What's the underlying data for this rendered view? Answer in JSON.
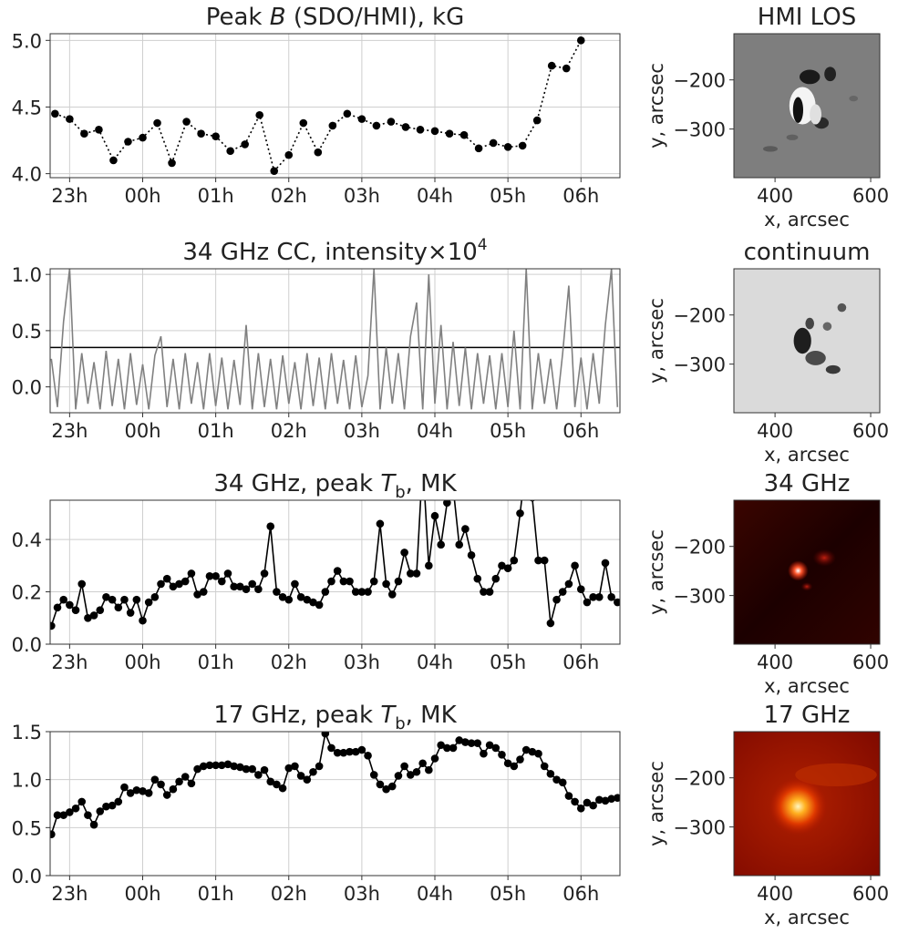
{
  "chart_data": [
    {
      "type": "line",
      "title": [
        {
          "text": "Peak "
        },
        {
          "text": "B",
          "style": "italic"
        },
        {
          "text": " (SDO/HMI), kG"
        }
      ],
      "x": [
        -72,
        -60,
        -48,
        -36,
        -24,
        -12,
        0,
        12,
        24,
        36,
        48,
        60,
        72,
        84,
        96,
        108,
        120,
        132,
        144,
        156,
        168,
        180,
        192,
        204,
        216,
        228,
        240,
        252,
        264,
        276,
        288,
        300,
        312,
        324,
        336,
        348,
        360
      ],
      "values": [
        4.45,
        4.41,
        4.3,
        4.33,
        4.1,
        4.24,
        4.27,
        4.38,
        4.08,
        4.39,
        4.3,
        4.28,
        4.17,
        4.22,
        4.44,
        4.02,
        4.14,
        4.38,
        4.16,
        4.36,
        4.45,
        4.41,
        4.36,
        4.39,
        4.35,
        4.33,
        4.32,
        4.3,
        4.29,
        4.19,
        4.23,
        4.2,
        4.21,
        4.4,
        4.81,
        4.79,
        5.0
      ],
      "color": "#000000",
      "linestyle": "dotted",
      "marker": true,
      "xlim": [
        -76,
        392
      ],
      "xticks": [
        {
          "value": -60,
          "label": "23h"
        },
        {
          "value": 0,
          "label": "00h"
        },
        {
          "value": 60,
          "label": "01h"
        },
        {
          "value": 120,
          "label": "02h"
        },
        {
          "value": 180,
          "label": "03h"
        },
        {
          "value": 240,
          "label": "04h"
        },
        {
          "value": 300,
          "label": "05h"
        },
        {
          "value": 360,
          "label": "06h"
        }
      ],
      "ylim": [
        3.97,
        5.05
      ],
      "yticks": [
        {
          "value": 4,
          "label": "4.0"
        },
        4.5,
        {
          "value": 5,
          "label": "5.0"
        }
      ],
      "grid": true
    },
    {
      "type": "image",
      "title": "HMI LOS",
      "xlabel": "x, arcsec",
      "ylabel": "y, arcsec",
      "xlim": [
        314,
        619
      ],
      "ylim": [
        -399,
        -106
      ],
      "xticks": [
        400,
        600
      ],
      "yticks": [
        {
          "value": -200,
          "label": "−200"
        },
        {
          "value": -300,
          "label": "−300"
        }
      ],
      "colormap": "gray"
    },
    {
      "type": "line",
      "title": [
        {
          "text": "34 GHz CC, intensity×10"
        },
        {
          "text": "4",
          "style": "sup"
        }
      ],
      "x": [
        -75,
        -70,
        -65,
        -60,
        -55,
        -50,
        -45,
        -40,
        -35,
        -30,
        -25,
        -20,
        -15,
        -10,
        -5,
        0,
        5,
        10,
        15,
        20,
        25,
        30,
        35,
        40,
        45,
        50,
        55,
        60,
        65,
        70,
        75,
        80,
        85,
        90,
        95,
        100,
        105,
        110,
        115,
        120,
        125,
        130,
        135,
        140,
        145,
        150,
        155,
        160,
        165,
        170,
        175,
        180,
        185,
        190,
        195,
        200,
        205,
        210,
        215,
        220,
        225,
        230,
        235,
        240,
        245,
        250,
        255,
        260,
        265,
        270,
        275,
        280,
        285,
        290,
        295,
        300,
        305,
        310,
        315,
        320,
        325,
        330,
        335,
        340,
        345,
        350,
        355,
        360,
        365,
        370,
        375,
        380,
        385,
        390
      ],
      "values": [
        0.25,
        -0.18,
        0.58,
        1.05,
        -0.2,
        0.3,
        -0.15,
        0.22,
        -0.2,
        0.32,
        -0.17,
        0.25,
        -0.2,
        0.3,
        -0.16,
        0.2,
        -0.2,
        0.28,
        0.45,
        -0.18,
        0.25,
        -0.2,
        0.3,
        -0.15,
        0.22,
        -0.2,
        0.3,
        -0.17,
        0.26,
        -0.2,
        0.24,
        -0.16,
        0.55,
        -0.2,
        0.3,
        -0.18,
        0.25,
        -0.2,
        0.28,
        -0.15,
        0.22,
        -0.2,
        0.3,
        -0.17,
        0.26,
        -0.2,
        0.3,
        -0.15,
        0.24,
        -0.2,
        0.28,
        -0.18,
        0.1,
        1.05,
        -0.2,
        0.35,
        -0.15,
        0.3,
        -0.2,
        0.45,
        0.75,
        -0.2,
        1.0,
        -0.15,
        0.55,
        -0.2,
        0.4,
        -0.17,
        0.35,
        -0.2,
        0.3,
        -0.15,
        0.28,
        -0.2,
        0.3,
        -0.18,
        0.5,
        -0.2,
        1.05,
        -0.2,
        0.3,
        -0.15,
        0.25,
        -0.2,
        0.3,
        0.9,
        -0.18,
        0.26,
        -0.2,
        0.3,
        -0.15,
        0.55,
        1.05,
        -0.18
      ],
      "color": "#808080",
      "linestyle": "solid",
      "marker": false,
      "hline": 0.35,
      "hline_color": "#000000",
      "xlim": [
        -76,
        392
      ],
      "xticks": [
        {
          "value": -60,
          "label": "23h"
        },
        {
          "value": 0,
          "label": "00h"
        },
        {
          "value": 60,
          "label": "01h"
        },
        {
          "value": 120,
          "label": "02h"
        },
        {
          "value": 180,
          "label": "03h"
        },
        {
          "value": 240,
          "label": "04h"
        },
        {
          "value": 300,
          "label": "05h"
        },
        {
          "value": 360,
          "label": "06h"
        }
      ],
      "ylim": [
        -0.23,
        1.05
      ],
      "yticks": [
        {
          "value": 0,
          "label": "0.0"
        },
        0.5,
        {
          "value": 1,
          "label": "1.0"
        }
      ],
      "grid": true
    },
    {
      "type": "image",
      "title": "continuum",
      "xlabel": "x, arcsec",
      "ylabel": "y, arcsec",
      "xlim": [
        314,
        619
      ],
      "ylim": [
        -399,
        -106
      ],
      "xticks": [
        400,
        600
      ],
      "yticks": [
        {
          "value": -200,
          "label": "−200"
        },
        {
          "value": -300,
          "label": "−300"
        }
      ],
      "colormap": "gray"
    },
    {
      "type": "line",
      "title": [
        {
          "text": "34 GHz, peak "
        },
        {
          "text": "T",
          "style": "italic"
        },
        {
          "text": "b",
          "style": "sub"
        },
        {
          "text": ", MK"
        }
      ],
      "x": [
        -75,
        -70,
        -65,
        -60,
        -55,
        -50,
        -45,
        -40,
        -35,
        -30,
        -25,
        -20,
        -15,
        -10,
        -5,
        0,
        5,
        10,
        15,
        20,
        25,
        30,
        35,
        40,
        45,
        50,
        55,
        60,
        65,
        70,
        75,
        80,
        85,
        90,
        95,
        100,
        105,
        110,
        115,
        120,
        125,
        130,
        135,
        140,
        145,
        150,
        155,
        160,
        165,
        170,
        175,
        180,
        185,
        190,
        195,
        200,
        205,
        210,
        215,
        220,
        225,
        230,
        235,
        240,
        245,
        250,
        255,
        260,
        265,
        270,
        275,
        280,
        285,
        290,
        295,
        300,
        305,
        310,
        315,
        320,
        325,
        330,
        335,
        340,
        345,
        350,
        355,
        360,
        365,
        370,
        375,
        380,
        385,
        390
      ],
      "values": [
        0.07,
        0.14,
        0.17,
        0.15,
        0.13,
        0.23,
        0.1,
        0.11,
        0.13,
        0.18,
        0.17,
        0.14,
        0.17,
        0.12,
        0.17,
        0.09,
        0.16,
        0.18,
        0.23,
        0.25,
        0.22,
        0.23,
        0.24,
        0.27,
        0.19,
        0.2,
        0.26,
        0.26,
        0.24,
        0.27,
        0.22,
        0.22,
        0.21,
        0.23,
        0.21,
        0.27,
        0.45,
        0.2,
        0.18,
        0.17,
        0.23,
        0.18,
        0.17,
        0.16,
        0.15,
        0.2,
        0.24,
        0.28,
        0.24,
        0.24,
        0.2,
        0.2,
        0.2,
        0.24,
        0.46,
        0.23,
        0.19,
        0.24,
        0.35,
        0.27,
        0.27,
        0.7,
        0.3,
        0.49,
        0.38,
        0.54,
        0.6,
        0.38,
        0.44,
        0.34,
        0.25,
        0.2,
        0.2,
        0.25,
        0.3,
        0.29,
        0.32,
        0.5,
        0.7,
        0.56,
        0.32,
        0.32,
        0.08,
        0.17,
        0.2,
        0.23,
        0.3,
        0.21,
        0.16,
        0.18,
        0.18,
        0.31,
        0.18,
        0.16
      ],
      "color": "#000000",
      "linestyle": "solid",
      "marker": true,
      "xlim": [
        -76,
        392
      ],
      "xticks": [
        {
          "value": -60,
          "label": "23h"
        },
        {
          "value": 0,
          "label": "00h"
        },
        {
          "value": 60,
          "label": "01h"
        },
        {
          "value": 120,
          "label": "02h"
        },
        {
          "value": 180,
          "label": "03h"
        },
        {
          "value": 240,
          "label": "04h"
        },
        {
          "value": 300,
          "label": "05h"
        },
        {
          "value": 360,
          "label": "06h"
        }
      ],
      "ylim": [
        0,
        0.55
      ],
      "yticks": [
        {
          "value": 0,
          "label": "0.0"
        },
        0.2,
        0.4
      ],
      "grid": true
    },
    {
      "type": "image",
      "title": "34 GHz",
      "xlabel": "x, arcsec",
      "ylabel": "y, arcsec",
      "xlim": [
        314,
        619
      ],
      "ylim": [
        -399,
        -106
      ],
      "xticks": [
        400,
        600
      ],
      "yticks": [
        {
          "value": -200,
          "label": "−200"
        },
        {
          "value": -300,
          "label": "−300"
        }
      ],
      "colormap": "hot"
    },
    {
      "type": "line",
      "title": [
        {
          "text": "17 GHz, peak "
        },
        {
          "text": "T",
          "style": "italic"
        },
        {
          "text": "b",
          "style": "sub"
        },
        {
          "text": ", MK"
        }
      ],
      "x": [
        -75,
        -70,
        -65,
        -60,
        -55,
        -50,
        -45,
        -40,
        -35,
        -30,
        -25,
        -20,
        -15,
        -10,
        -5,
        0,
        5,
        10,
        15,
        20,
        25,
        30,
        35,
        40,
        45,
        50,
        55,
        60,
        65,
        70,
        75,
        80,
        85,
        90,
        95,
        100,
        105,
        110,
        115,
        120,
        125,
        130,
        135,
        140,
        145,
        150,
        155,
        160,
        165,
        170,
        175,
        180,
        185,
        190,
        195,
        200,
        205,
        210,
        215,
        220,
        225,
        230,
        235,
        240,
        245,
        250,
        255,
        260,
        265,
        270,
        275,
        280,
        285,
        290,
        295,
        300,
        305,
        310,
        315,
        320,
        325,
        330,
        335,
        340,
        345,
        350,
        355,
        360,
        365,
        370,
        375,
        380,
        385,
        390
      ],
      "values": [
        0.43,
        0.63,
        0.63,
        0.66,
        0.7,
        0.77,
        0.63,
        0.53,
        0.67,
        0.72,
        0.73,
        0.77,
        0.92,
        0.86,
        0.89,
        0.88,
        0.86,
        1.0,
        0.95,
        0.84,
        0.9,
        0.98,
        1.03,
        0.96,
        1.11,
        1.14,
        1.15,
        1.15,
        1.15,
        1.16,
        1.14,
        1.13,
        1.11,
        1.11,
        1.05,
        1.1,
        0.98,
        0.95,
        0.91,
        1.12,
        1.14,
        1.04,
        1.0,
        1.08,
        1.14,
        1.48,
        1.33,
        1.28,
        1.28,
        1.29,
        1.29,
        1.31,
        1.25,
        1.05,
        0.95,
        0.9,
        0.93,
        1.04,
        1.14,
        1.05,
        1.08,
        1.17,
        1.1,
        1.22,
        1.36,
        1.33,
        1.33,
        1.41,
        1.39,
        1.38,
        1.38,
        1.27,
        1.36,
        1.33,
        1.26,
        1.17,
        1.14,
        1.21,
        1.31,
        1.29,
        1.27,
        1.14,
        1.06,
        1.0,
        0.97,
        0.83,
        0.77,
        0.7,
        0.76,
        0.73,
        0.79,
        0.78,
        0.8,
        0.81
      ],
      "color": "#000000",
      "linestyle": "solid",
      "marker": true,
      "xlim": [
        -76,
        392
      ],
      "xticks": [
        {
          "value": -60,
          "label": "23h"
        },
        {
          "value": 0,
          "label": "00h"
        },
        {
          "value": 60,
          "label": "01h"
        },
        {
          "value": 120,
          "label": "02h"
        },
        {
          "value": 180,
          "label": "03h"
        },
        {
          "value": 240,
          "label": "04h"
        },
        {
          "value": 300,
          "label": "05h"
        },
        {
          "value": 360,
          "label": "06h"
        }
      ],
      "ylim": [
        0,
        1.5
      ],
      "yticks": [
        {
          "value": 0,
          "label": "0.0"
        },
        0.5,
        {
          "value": 1,
          "label": "1.0"
        },
        1.5
      ],
      "grid": true
    },
    {
      "type": "image",
      "title": "17 GHz",
      "xlabel": "x, arcsec",
      "ylabel": "y, arcsec",
      "xlim": [
        314,
        619
      ],
      "ylim": [
        -399,
        -106
      ],
      "xticks": [
        400,
        600
      ],
      "yticks": [
        {
          "value": -200,
          "label": "−200"
        },
        {
          "value": -300,
          "label": "−300"
        }
      ],
      "colormap": "hot"
    }
  ]
}
